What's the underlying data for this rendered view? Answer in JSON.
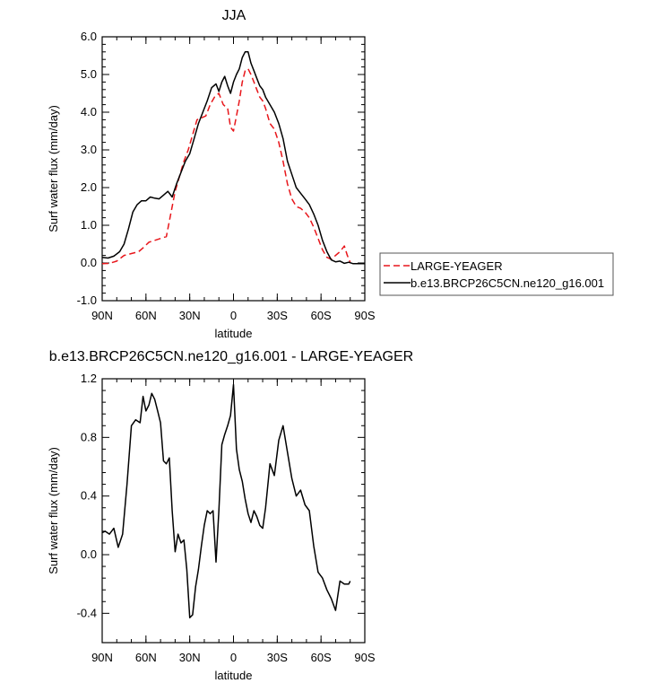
{
  "chart_data": [
    {
      "type": "line",
      "title": "JJA",
      "xlabel": "latitude",
      "ylabel": "Surf water flux (mm/day)",
      "xlim": [
        90,
        -90
      ],
      "ylim": [
        -1.0,
        6.0
      ],
      "xticks": [
        90,
        60,
        30,
        0,
        -30,
        -60,
        -90
      ],
      "xtick_labels": [
        "90N",
        "60N",
        "30N",
        "0",
        "30S",
        "60S",
        "90S"
      ],
      "yticks": [
        -1.0,
        0.0,
        1.0,
        2.0,
        3.0,
        4.0,
        5.0,
        6.0
      ],
      "ytick_labels": [
        "-1.0",
        "0.0",
        "1.0",
        "2.0",
        "3.0",
        "4.0",
        "5.0",
        "6.0"
      ],
      "legend_position": "right",
      "series": [
        {
          "name": "LARGE-YEAGER",
          "color": "#e8161b",
          "dash": "dashed",
          "x": [
            90,
            85,
            80,
            75,
            70,
            65,
            62,
            58,
            54,
            50,
            46,
            43,
            40,
            37,
            34,
            31,
            28,
            25,
            22,
            19,
            16,
            13,
            10,
            7,
            4,
            2,
            0,
            -2,
            -4,
            -6,
            -8,
            -10,
            -12,
            -14,
            -16,
            -18,
            -20,
            -22,
            -25,
            -28,
            -31,
            -34,
            -37,
            -40,
            -43,
            -46,
            -49,
            -52,
            -55,
            -58,
            -61,
            -64,
            -67,
            -70,
            -73,
            -76,
            -78,
            -80
          ],
          "y": [
            -0.02,
            -0.01,
            0.05,
            0.2,
            0.25,
            0.3,
            0.4,
            0.55,
            0.6,
            0.65,
            0.7,
            1.3,
            1.9,
            2.3,
            2.7,
            3.0,
            3.4,
            3.8,
            3.85,
            3.9,
            4.2,
            4.4,
            4.5,
            4.2,
            4.1,
            3.6,
            3.5,
            3.9,
            4.3,
            4.8,
            5.1,
            5.15,
            5.0,
            4.8,
            4.6,
            4.4,
            4.3,
            4.1,
            3.7,
            3.55,
            3.2,
            2.7,
            2.1,
            1.7,
            1.5,
            1.45,
            1.35,
            1.2,
            0.95,
            0.65,
            0.35,
            0.15,
            0.1,
            0.2,
            0.3,
            0.45,
            0.2,
            0.02
          ]
        },
        {
          "name": "b.e13.BRCP26C5CN.ne120_g16.001",
          "color": "#000000",
          "dash": "solid",
          "x": [
            90,
            86,
            82,
            78,
            75,
            72,
            69,
            66,
            63,
            60,
            57,
            54,
            51,
            48,
            45,
            42,
            39,
            36,
            33,
            30,
            27,
            24,
            21,
            18,
            15,
            12,
            10,
            8,
            6,
            4,
            2,
            0,
            -2,
            -4,
            -6,
            -8,
            -10,
            -12,
            -14,
            -16,
            -18,
            -20,
            -22,
            -25,
            -28,
            -31,
            -34,
            -37,
            -40,
            -43,
            -46,
            -49,
            -52,
            -55,
            -58,
            -61,
            -64,
            -67,
            -70,
            -73,
            -76,
            -79,
            -82,
            -86,
            -90
          ],
          "y": [
            0.15,
            0.13,
            0.18,
            0.3,
            0.5,
            0.9,
            1.35,
            1.55,
            1.65,
            1.65,
            1.75,
            1.72,
            1.7,
            1.8,
            1.9,
            1.75,
            2.1,
            2.4,
            2.7,
            2.9,
            3.3,
            3.7,
            4.0,
            4.3,
            4.65,
            4.75,
            4.55,
            4.8,
            4.95,
            4.7,
            4.5,
            4.8,
            5.0,
            5.15,
            5.45,
            5.6,
            5.6,
            5.3,
            5.1,
            4.9,
            4.7,
            4.6,
            4.4,
            4.2,
            4.0,
            3.7,
            3.3,
            2.7,
            2.35,
            2.0,
            1.85,
            1.7,
            1.55,
            1.3,
            1.0,
            0.6,
            0.3,
            0.08,
            0.03,
            0.05,
            -0.01,
            0.02,
            -0.02,
            -0.02,
            -0.02
          ]
        }
      ]
    },
    {
      "type": "line",
      "title": "b.e13.BRCP26C5CN.ne120_g16.001 - LARGE-YEAGER",
      "xlabel": "latitude",
      "ylabel": "Surf water flux (mm/day)",
      "xlim": [
        90,
        -90
      ],
      "ylim": [
        -0.6,
        1.2
      ],
      "xticks": [
        90,
        60,
        30,
        0,
        -30,
        -60,
        -90
      ],
      "xtick_labels": [
        "90N",
        "60N",
        "30N",
        "0",
        "30S",
        "60S",
        "90S"
      ],
      "yticks": [
        -0.4,
        0.0,
        0.4,
        0.8,
        1.2
      ],
      "ytick_labels": [
        "-0.4",
        "0.0",
        "0.4",
        "0.8",
        "1.2"
      ],
      "series": [
        {
          "name": "",
          "color": "#000000",
          "dash": "solid",
          "x": [
            90,
            88,
            85,
            82,
            79,
            76,
            73,
            70,
            67,
            64,
            62,
            60,
            58,
            56,
            54,
            52,
            50,
            48,
            46,
            44,
            42,
            40,
            38,
            36,
            34,
            32,
            30,
            28,
            26,
            24,
            22,
            20,
            18,
            16,
            14,
            12,
            10,
            8,
            6,
            4,
            2,
            0,
            -2,
            -4,
            -6,
            -8,
            -10,
            -12,
            -14,
            -16,
            -18,
            -20,
            -22,
            -25,
            -28,
            -31,
            -34,
            -37,
            -40,
            -43,
            -46,
            -49,
            -52,
            -55,
            -58,
            -61,
            -64,
            -67,
            -70,
            -73,
            -76,
            -79,
            -80
          ],
          "y": [
            0.15,
            0.16,
            0.14,
            0.18,
            0.05,
            0.14,
            0.48,
            0.88,
            0.92,
            0.9,
            1.08,
            0.98,
            1.02,
            1.1,
            1.06,
            0.98,
            0.9,
            0.64,
            0.62,
            0.66,
            0.3,
            0.02,
            0.14,
            0.08,
            0.1,
            -0.1,
            -0.43,
            -0.41,
            -0.22,
            -0.1,
            0.06,
            0.2,
            0.3,
            0.28,
            0.3,
            -0.05,
            0.3,
            0.75,
            0.82,
            0.88,
            0.95,
            1.16,
            0.72,
            0.58,
            0.5,
            0.38,
            0.28,
            0.22,
            0.3,
            0.26,
            0.2,
            0.18,
            0.32,
            0.62,
            0.54,
            0.78,
            0.88,
            0.7,
            0.52,
            0.4,
            0.44,
            0.34,
            0.3,
            0.06,
            -0.12,
            -0.16,
            -0.24,
            -0.3,
            -0.38,
            -0.18,
            -0.2,
            -0.2,
            -0.18
          ]
        }
      ]
    }
  ]
}
